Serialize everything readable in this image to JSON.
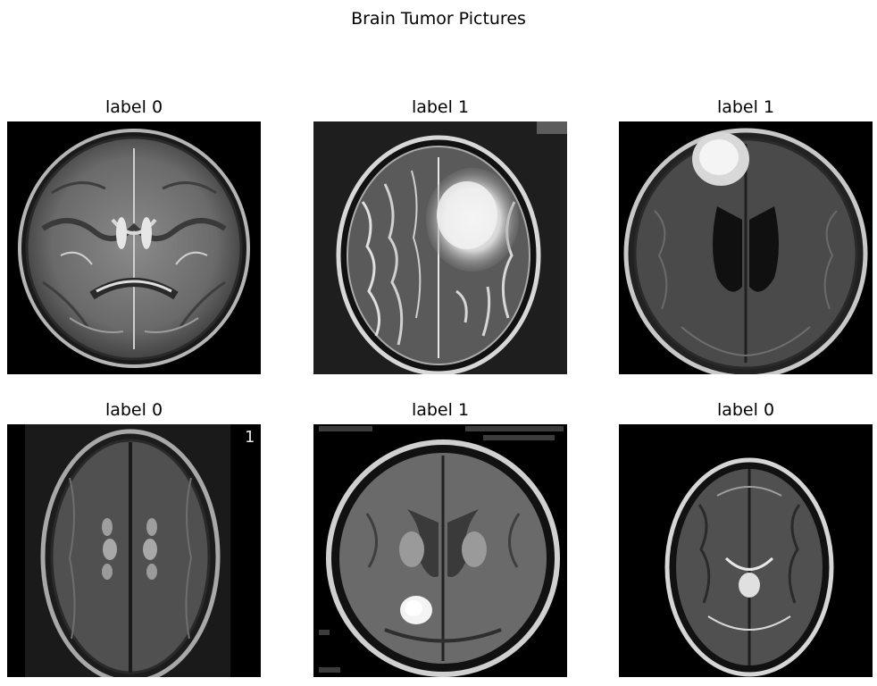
{
  "title": "Brain Tumor Pictures",
  "panels": [
    {
      "label": "label 0"
    },
    {
      "label": "label 1"
    },
    {
      "label": "label 1"
    },
    {
      "label": "label 0",
      "corner_text": "1"
    },
    {
      "label": "label 1"
    },
    {
      "label": "label 0"
    }
  ]
}
